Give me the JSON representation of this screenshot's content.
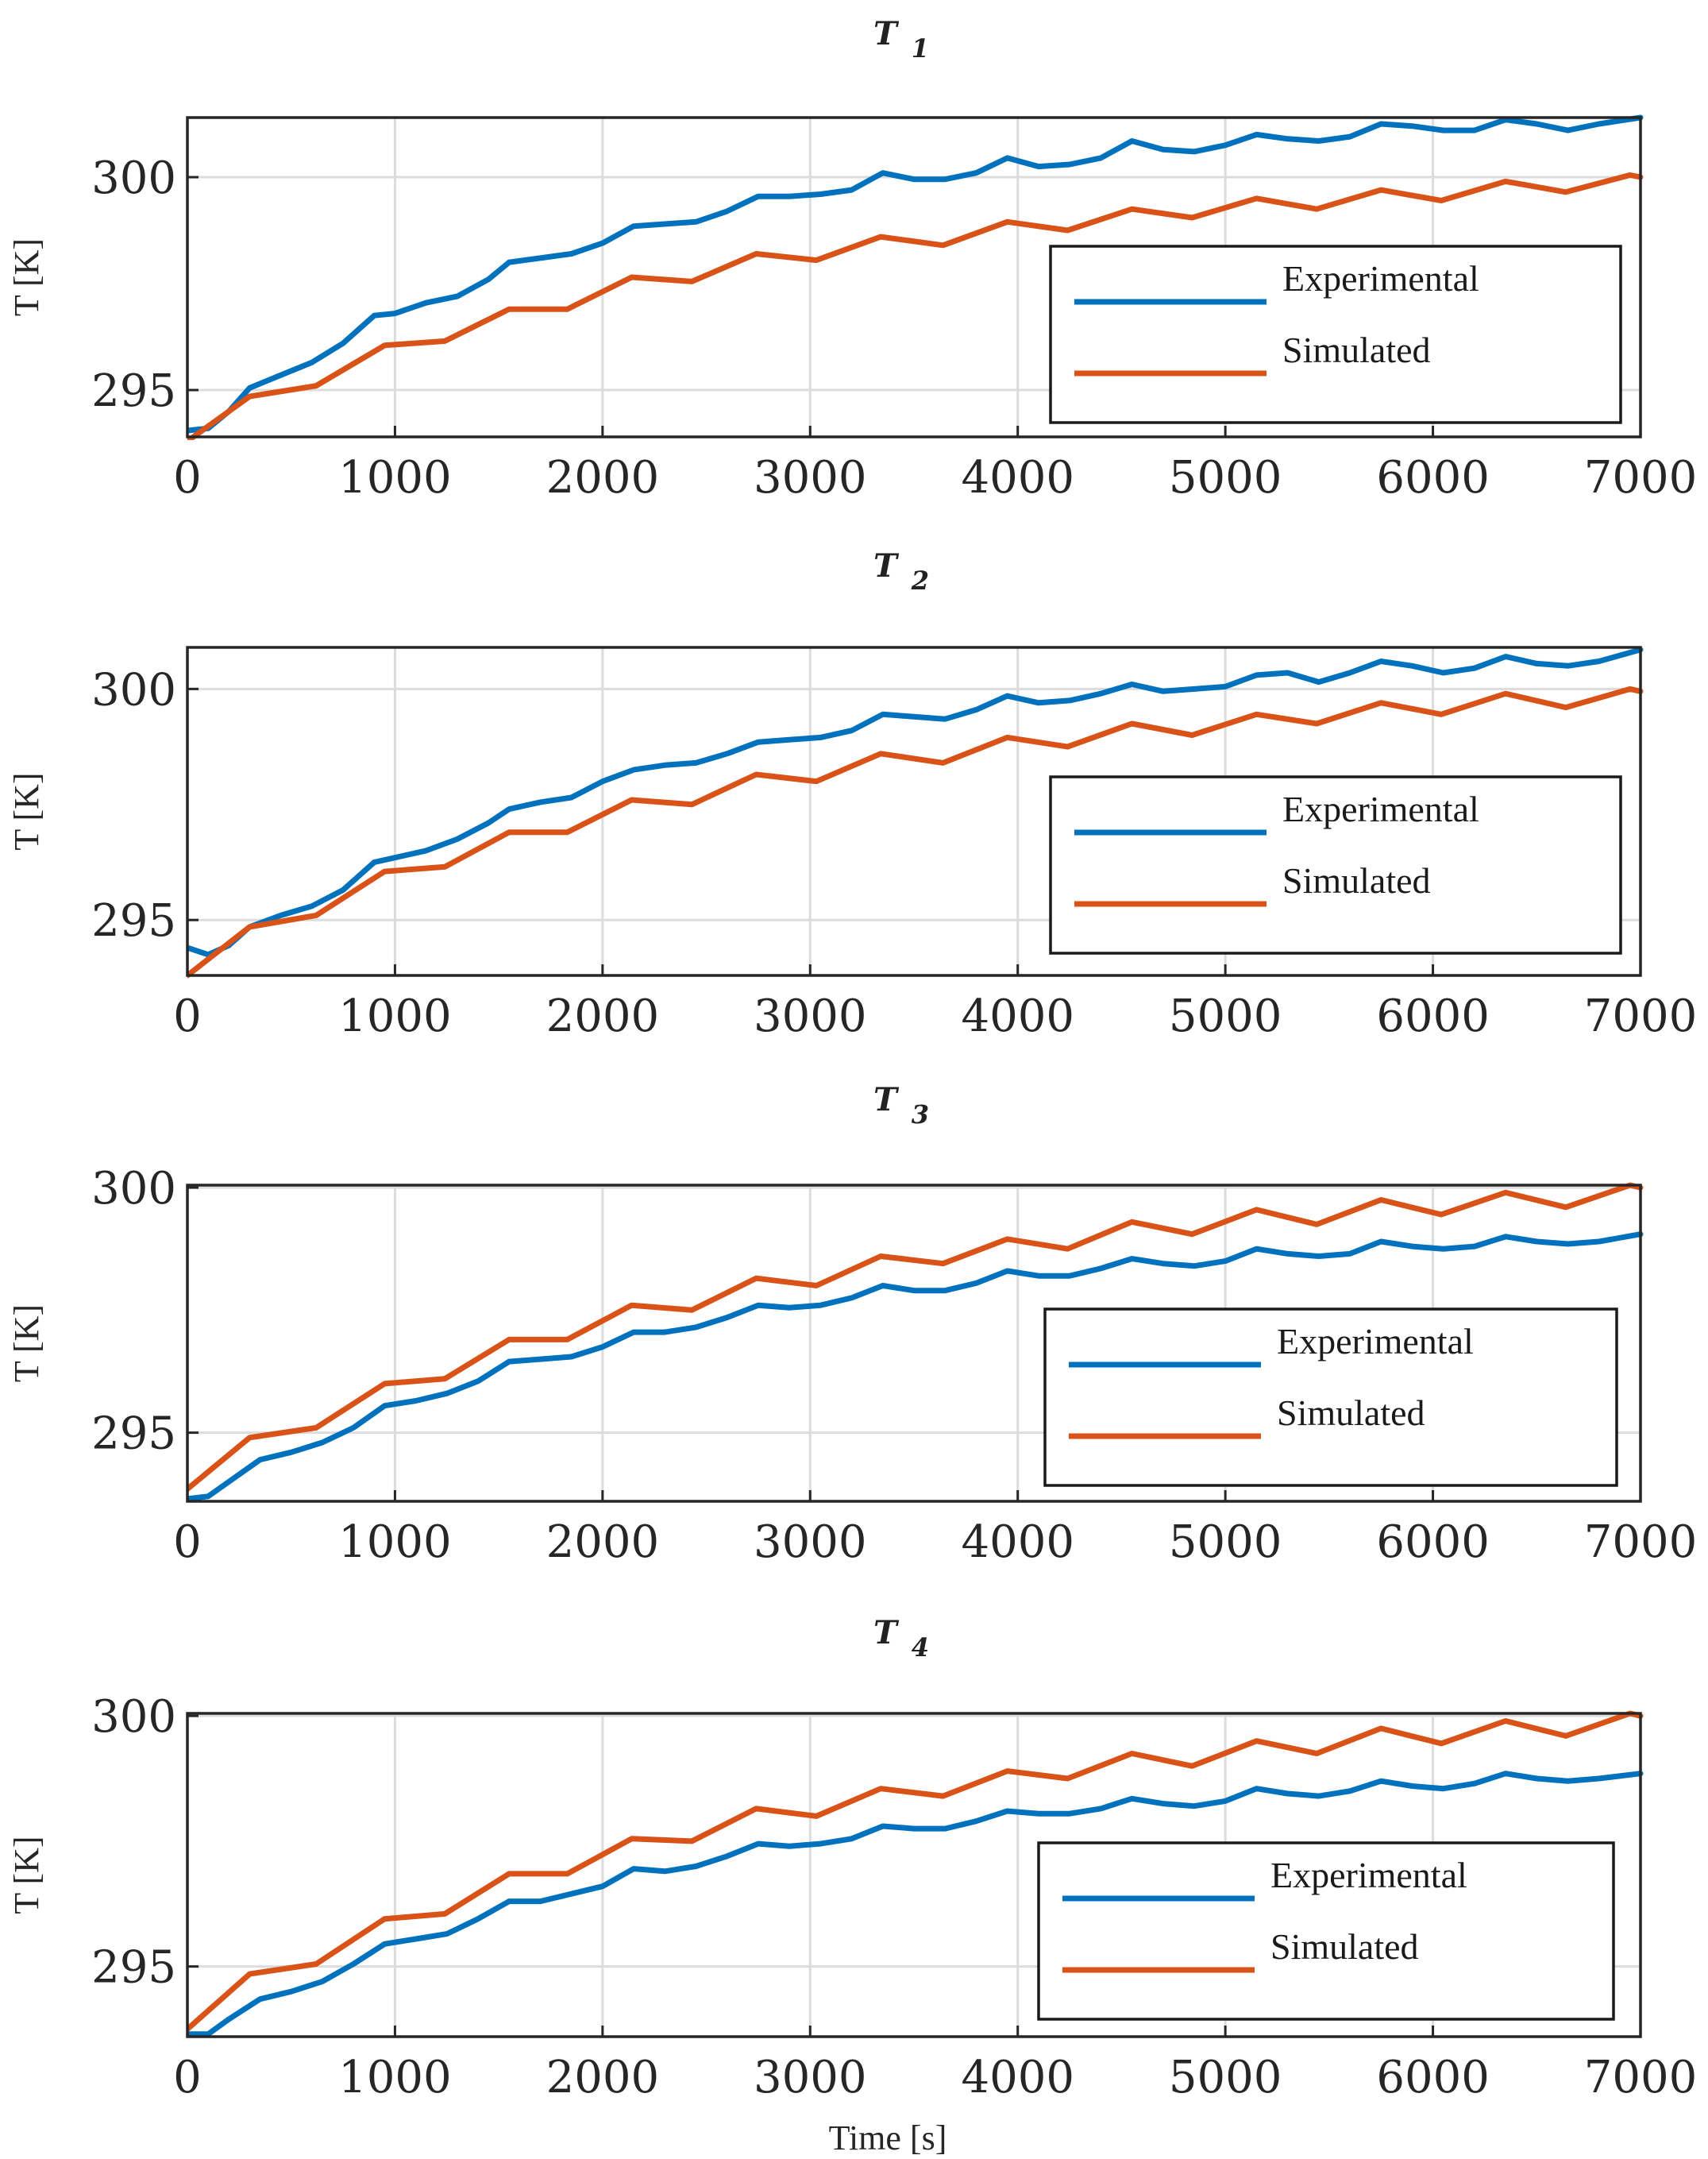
{
  "figure": {
    "xlabel": "Time [s]"
  },
  "chart_data": [
    {
      "type": "line",
      "title": "T",
      "title_subscript": "1",
      "xlabel": "",
      "ylabel": "T [K]",
      "xlim": [
        0,
        7000
      ],
      "ylim": [
        293.9,
        301.4
      ],
      "xticks": [
        0,
        1000,
        2000,
        3000,
        4000,
        5000,
        6000,
        7000
      ],
      "yticks": [
        295,
        300
      ],
      "grid": true,
      "legend_position": "right",
      "series": [
        {
          "name": "Experimental",
          "color": "#0072BD",
          "x": [
            0,
            100,
            200,
            300,
            450,
            600,
            750,
            900,
            1000,
            1150,
            1300,
            1450,
            1550,
            1700,
            1850,
            2000,
            2150,
            2300,
            2450,
            2600,
            2750,
            2900,
            3050,
            3200,
            3350,
            3500,
            3650,
            3800,
            3950,
            4100,
            4250,
            4400,
            4550,
            4700,
            4850,
            5000,
            5150,
            5300,
            5450,
            5600,
            5750,
            5900,
            6050,
            6200,
            6350,
            6500,
            6650,
            6800,
            7000
          ],
          "y": [
            294.05,
            294.1,
            294.5,
            295.05,
            295.35,
            295.65,
            296.1,
            296.75,
            296.8,
            297.05,
            297.2,
            297.6,
            298.0,
            298.1,
            298.2,
            298.45,
            298.85,
            298.9,
            298.95,
            299.2,
            299.55,
            299.55,
            299.6,
            299.7,
            300.1,
            299.95,
            299.95,
            300.1,
            300.45,
            300.25,
            300.3,
            300.45,
            300.85,
            300.65,
            300.6,
            300.75,
            301.0,
            300.9,
            300.85,
            300.95,
            301.25,
            301.2,
            301.1,
            301.1,
            301.35,
            301.25,
            301.1,
            301.25,
            301.4
          ]
        },
        {
          "name": "Simulated",
          "color": "#D95319",
          "x": [
            0,
            300,
            620,
            950,
            1240,
            1550,
            1830,
            2140,
            2430,
            2740,
            3030,
            3340,
            3640,
            3950,
            4240,
            4550,
            4840,
            5150,
            5440,
            5750,
            6040,
            6350,
            6640,
            6950,
            7000
          ],
          "y": [
            293.8,
            294.85,
            295.1,
            296.05,
            296.15,
            296.9,
            296.9,
            297.65,
            297.55,
            298.2,
            298.05,
            298.6,
            298.4,
            298.95,
            298.75,
            299.25,
            299.05,
            299.5,
            299.25,
            299.7,
            299.45,
            299.9,
            299.65,
            300.05,
            300.0
          ]
        }
      ]
    },
    {
      "type": "line",
      "title": "T",
      "title_subscript": "2",
      "xlabel": "",
      "ylabel": "T [K]",
      "xlim": [
        0,
        7000
      ],
      "ylim": [
        293.8,
        300.9
      ],
      "xticks": [
        0,
        1000,
        2000,
        3000,
        4000,
        5000,
        6000,
        7000
      ],
      "yticks": [
        295,
        300
      ],
      "grid": true,
      "legend_position": "right",
      "series": [
        {
          "name": "Experimental",
          "color": "#0072BD",
          "x": [
            0,
            100,
            200,
            300,
            450,
            600,
            750,
            900,
            1000,
            1150,
            1300,
            1450,
            1550,
            1700,
            1850,
            2000,
            2150,
            2300,
            2450,
            2600,
            2750,
            2900,
            3050,
            3200,
            3350,
            3500,
            3650,
            3800,
            3950,
            4100,
            4250,
            4400,
            4550,
            4700,
            4850,
            5000,
            5150,
            5300,
            5450,
            5600,
            5750,
            5900,
            6050,
            6200,
            6350,
            6500,
            6650,
            6800,
            7000
          ],
          "y": [
            294.4,
            294.25,
            294.45,
            294.85,
            295.1,
            295.3,
            295.65,
            296.25,
            296.35,
            296.5,
            296.75,
            297.1,
            297.4,
            297.55,
            297.65,
            298.0,
            298.25,
            298.35,
            298.4,
            298.6,
            298.85,
            298.9,
            298.95,
            299.1,
            299.45,
            299.4,
            299.35,
            299.55,
            299.85,
            299.7,
            299.75,
            299.9,
            300.1,
            299.95,
            300.0,
            300.05,
            300.3,
            300.35,
            300.15,
            300.35,
            300.6,
            300.5,
            300.35,
            300.45,
            300.7,
            300.55,
            300.5,
            300.6,
            300.85
          ]
        },
        {
          "name": "Simulated",
          "color": "#D95319",
          "x": [
            0,
            300,
            620,
            950,
            1240,
            1550,
            1830,
            2140,
            2430,
            2740,
            3030,
            3340,
            3640,
            3950,
            4240,
            4550,
            4840,
            5150,
            5440,
            5750,
            6040,
            6350,
            6640,
            6950,
            7000
          ],
          "y": [
            293.8,
            294.85,
            295.1,
            296.05,
            296.15,
            296.9,
            296.9,
            297.6,
            297.5,
            298.15,
            298.0,
            298.6,
            298.4,
            298.95,
            298.75,
            299.25,
            299.0,
            299.45,
            299.25,
            299.7,
            299.45,
            299.9,
            299.6,
            300.0,
            299.95
          ]
        }
      ]
    },
    {
      "type": "line",
      "title": "T",
      "title_subscript": "3",
      "xlabel": "",
      "ylabel": "T [K]",
      "xlim": [
        0,
        7000
      ],
      "ylim": [
        293.6,
        300.05
      ],
      "xticks": [
        0,
        1000,
        2000,
        3000,
        4000,
        5000,
        6000,
        7000
      ],
      "yticks": [
        295,
        300
      ],
      "grid": true,
      "legend_position": "right",
      "series": [
        {
          "name": "Experimental",
          "color": "#0072BD",
          "x": [
            0,
            100,
            200,
            350,
            500,
            650,
            800,
            950,
            1100,
            1250,
            1400,
            1550,
            1700,
            1850,
            2000,
            2150,
            2300,
            2450,
            2600,
            2750,
            2900,
            3050,
            3200,
            3350,
            3500,
            3650,
            3800,
            3950,
            4100,
            4250,
            4400,
            4550,
            4700,
            4850,
            5000,
            5150,
            5300,
            5450,
            5600,
            5750,
            5900,
            6050,
            6200,
            6350,
            6500,
            6650,
            6800,
            7000
          ],
          "y": [
            293.65,
            293.7,
            294.0,
            294.45,
            294.6,
            294.8,
            295.1,
            295.55,
            295.65,
            295.8,
            296.05,
            296.45,
            296.5,
            296.55,
            296.75,
            297.05,
            297.05,
            297.15,
            297.35,
            297.6,
            297.55,
            297.6,
            297.75,
            298.0,
            297.9,
            297.9,
            298.05,
            298.3,
            298.2,
            298.2,
            298.35,
            298.55,
            298.45,
            298.4,
            298.5,
            298.75,
            298.65,
            298.6,
            298.65,
            298.9,
            298.8,
            298.75,
            298.8,
            299.0,
            298.9,
            298.85,
            298.9,
            299.05
          ]
        },
        {
          "name": "Simulated",
          "color": "#D95319",
          "x": [
            0,
            300,
            620,
            950,
            1240,
            1550,
            1830,
            2140,
            2430,
            2740,
            3030,
            3340,
            3640,
            3950,
            4240,
            4550,
            4840,
            5150,
            5440,
            5750,
            6040,
            6350,
            6640,
            6950,
            7000
          ],
          "y": [
            293.85,
            294.9,
            295.1,
            296.0,
            296.1,
            296.9,
            296.9,
            297.6,
            297.5,
            298.15,
            298.0,
            298.6,
            298.45,
            298.95,
            298.75,
            299.3,
            299.05,
            299.55,
            299.25,
            299.75,
            299.45,
            299.9,
            299.6,
            300.05,
            300.0
          ]
        }
      ]
    },
    {
      "type": "line",
      "title": "T",
      "title_subscript": "4",
      "xlabel": "Time [s]",
      "ylabel": "T [K]",
      "xlim": [
        0,
        7000
      ],
      "ylim": [
        293.6,
        300.05
      ],
      "xticks": [
        0,
        1000,
        2000,
        3000,
        4000,
        5000,
        6000,
        7000
      ],
      "yticks": [
        295,
        300
      ],
      "grid": true,
      "legend_position": "right",
      "series": [
        {
          "name": "Experimental",
          "color": "#0072BD",
          "x": [
            0,
            100,
            200,
            350,
            500,
            650,
            800,
            950,
            1100,
            1250,
            1400,
            1550,
            1700,
            1850,
            2000,
            2150,
            2300,
            2450,
            2600,
            2750,
            2900,
            3050,
            3200,
            3350,
            3500,
            3650,
            3800,
            3950,
            4100,
            4250,
            4400,
            4550,
            4700,
            4850,
            5000,
            5150,
            5300,
            5450,
            5600,
            5750,
            5900,
            6050,
            6200,
            6350,
            6500,
            6650,
            6800,
            7000
          ],
          "y": [
            293.65,
            293.65,
            293.95,
            294.35,
            294.5,
            294.7,
            295.05,
            295.45,
            295.55,
            295.65,
            295.95,
            296.3,
            296.3,
            296.45,
            296.6,
            296.95,
            296.9,
            297.0,
            297.2,
            297.45,
            297.4,
            297.45,
            297.55,
            297.8,
            297.75,
            297.75,
            297.9,
            298.1,
            298.05,
            298.05,
            298.15,
            298.35,
            298.25,
            298.2,
            298.3,
            298.55,
            298.45,
            298.4,
            298.5,
            298.7,
            298.6,
            298.55,
            298.65,
            298.85,
            298.75,
            298.7,
            298.75,
            298.85
          ]
        },
        {
          "name": "Simulated",
          "color": "#D95319",
          "x": [
            0,
            300,
            620,
            950,
            1240,
            1550,
            1830,
            2140,
            2430,
            2740,
            3030,
            3340,
            3640,
            3950,
            4240,
            4550,
            4840,
            5150,
            5440,
            5750,
            6040,
            6350,
            6640,
            6950,
            7000
          ],
          "y": [
            293.75,
            294.85,
            295.05,
            295.95,
            296.05,
            296.85,
            296.85,
            297.55,
            297.5,
            298.15,
            298.0,
            298.55,
            298.4,
            298.9,
            298.75,
            299.25,
            299.0,
            299.5,
            299.25,
            299.75,
            299.45,
            299.9,
            299.6,
            300.05,
            300.0
          ]
        }
      ]
    }
  ]
}
